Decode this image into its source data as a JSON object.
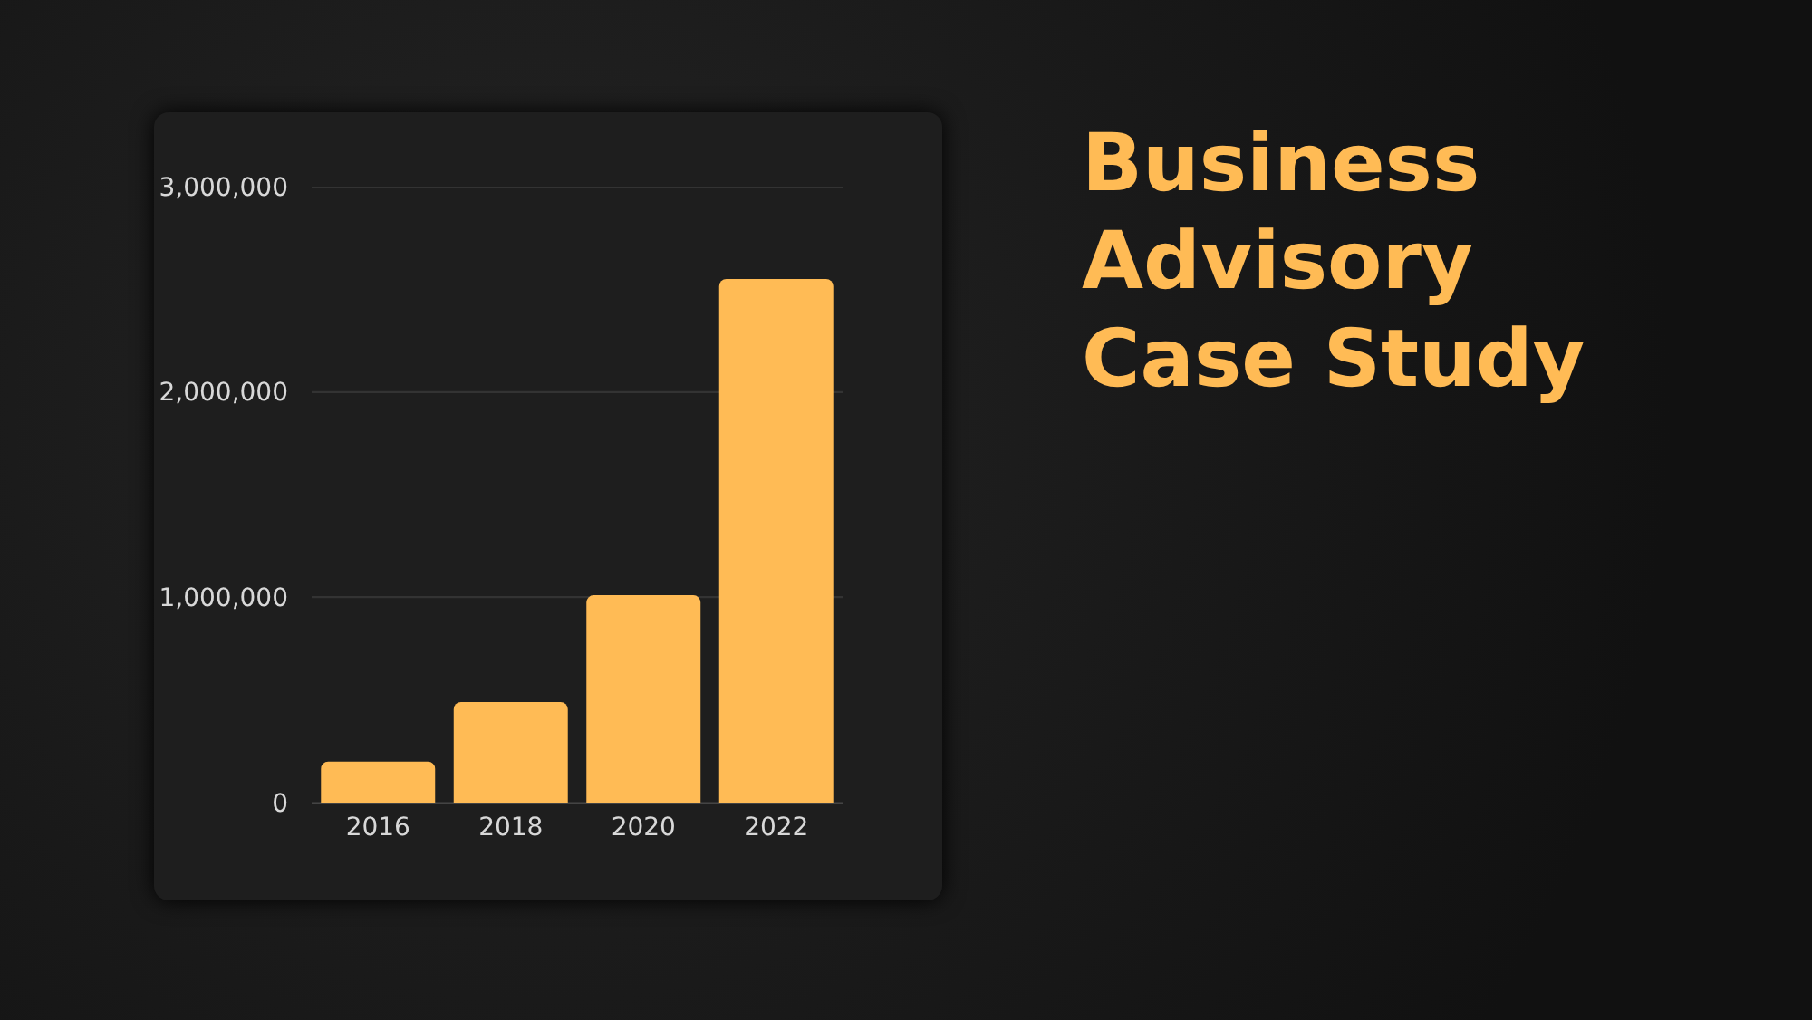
{
  "chart_data": {
    "type": "bar",
    "title": "Business Advisory Case Study",
    "categories": [
      "2016",
      "2018",
      "2020",
      "2022"
    ],
    "values": [
      200000,
      490000,
      1010000,
      2550000
    ],
    "color": "#ffbb55",
    "ylim": [
      0,
      3000000
    ],
    "yticks": [
      {
        "value": 0,
        "label": "0"
      },
      {
        "value": 1000000,
        "label": "1,000,000"
      },
      {
        "value": 2000000,
        "label": "2,000,000"
      },
      {
        "value": 3000000,
        "label": "3,000,000"
      }
    ],
    "grid": "y"
  }
}
